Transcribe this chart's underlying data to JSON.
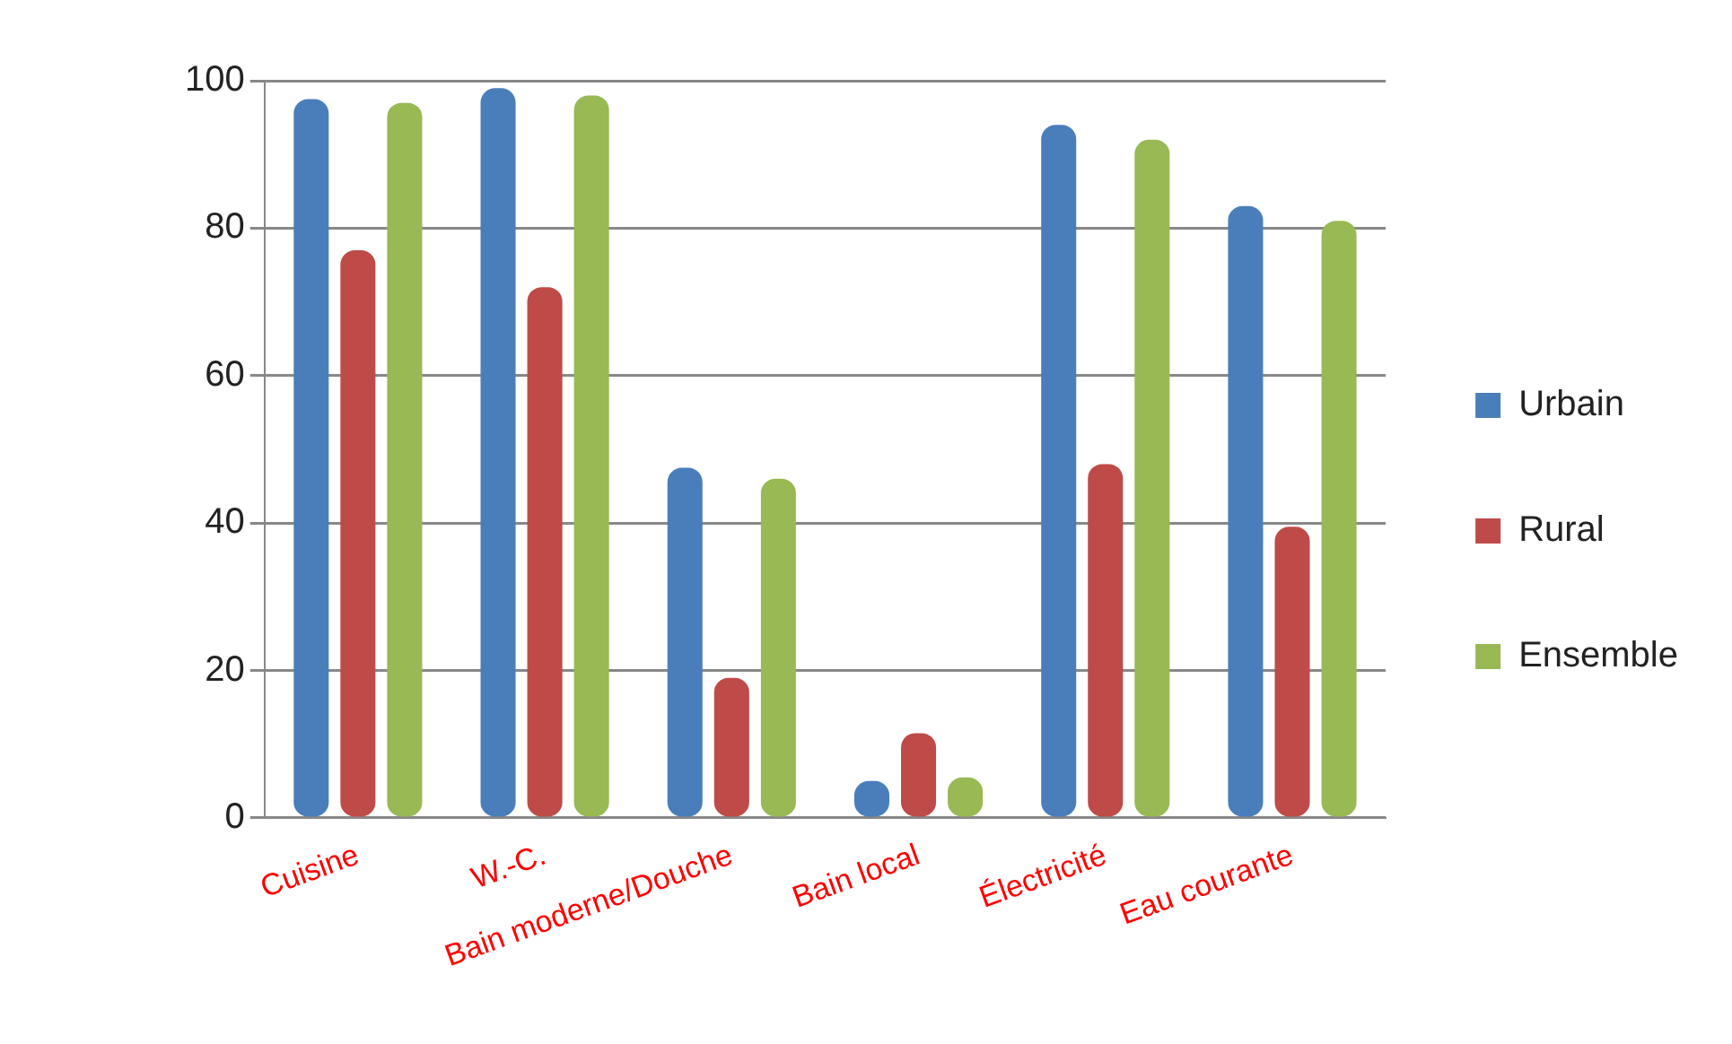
{
  "chart_data": {
    "type": "bar",
    "categories": [
      "Cuisine",
      "W.-C.",
      "Bain moderne/Douche",
      "Bain local",
      "Électricité",
      "Eau courante"
    ],
    "series": [
      {
        "name": "Urbain",
        "color": "#4a7ebb",
        "values": [
          97.5,
          99,
          47.5,
          5,
          94,
          83
        ]
      },
      {
        "name": "Rural",
        "color": "#be4b48",
        "values": [
          77,
          72,
          19,
          11.5,
          48,
          39.5
        ]
      },
      {
        "name": "Ensemble",
        "color": "#98b954",
        "values": [
          97,
          98,
          46,
          5.5,
          92,
          81
        ]
      }
    ],
    "ylim": [
      0,
      100
    ],
    "yticks": [
      0,
      20,
      40,
      60,
      80,
      100
    ],
    "grid": "y",
    "legend": "right"
  }
}
